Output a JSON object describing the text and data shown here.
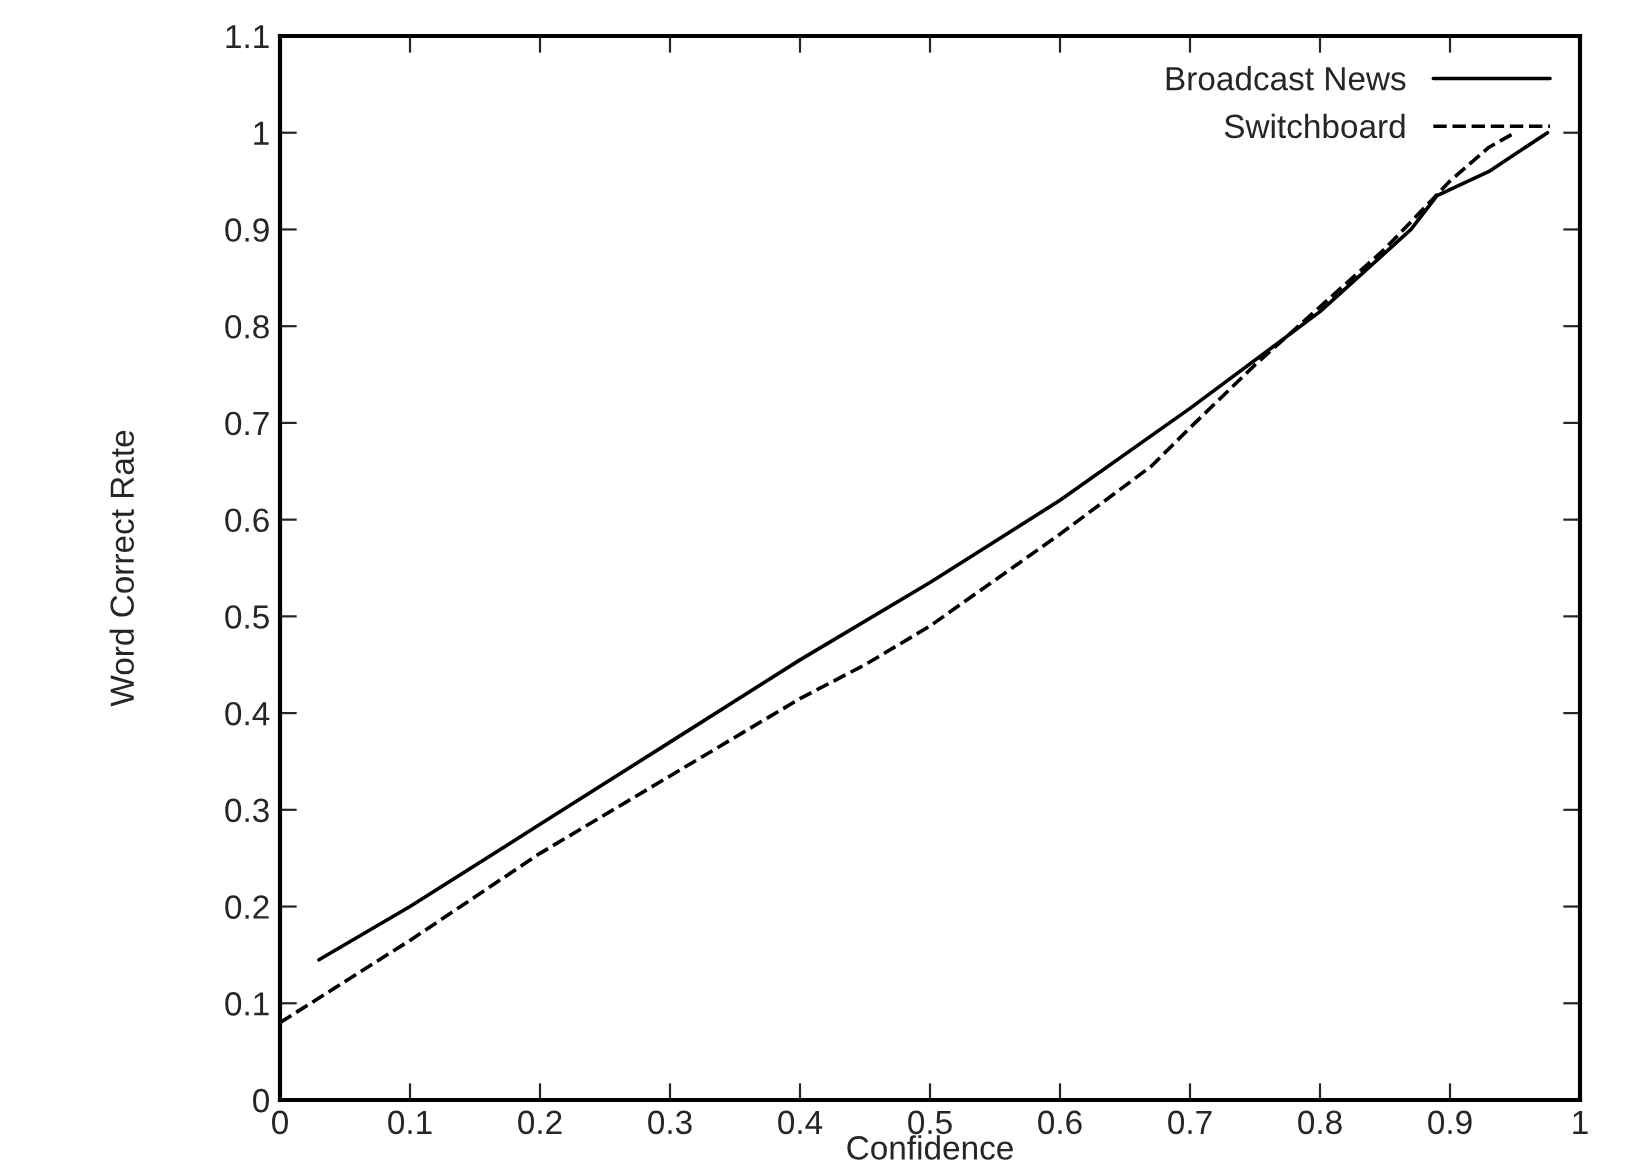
{
  "chart_data": {
    "type": "line",
    "xlabel": "Confidence",
    "ylabel": "Word Correct Rate",
    "xlim": [
      0,
      1
    ],
    "ylim": [
      0,
      1.1
    ],
    "xticks": [
      0,
      0.1,
      0.2,
      0.3,
      0.4,
      0.5,
      0.6,
      0.7,
      0.8,
      0.9,
      1
    ],
    "yticks": [
      0,
      0.1,
      0.2,
      0.3,
      0.4,
      0.5,
      0.6,
      0.7,
      0.8,
      0.9,
      1,
      1.1
    ],
    "grid": false,
    "legend": "top right",
    "series": [
      {
        "name": "Broadcast News",
        "color": "#000000",
        "line_style": "solid",
        "x": [
          0.03,
          0.1,
          0.2,
          0.3,
          0.4,
          0.5,
          0.6,
          0.7,
          0.8,
          0.87,
          0.89,
          0.93,
          0.975
        ],
        "values": [
          0.145,
          0.2,
          0.285,
          0.37,
          0.455,
          0.535,
          0.62,
          0.715,
          0.815,
          0.9,
          0.935,
          0.96,
          1.0
        ]
      },
      {
        "name": "Switchboard",
        "color": "#000000",
        "line_style": "dashed",
        "x": [
          0,
          0.1,
          0.2,
          0.3,
          0.4,
          0.45,
          0.5,
          0.6,
          0.67,
          0.7,
          0.75,
          0.8,
          0.85,
          0.9,
          0.93,
          0.95
        ],
        "values": [
          0.08,
          0.165,
          0.255,
          0.335,
          0.415,
          0.45,
          0.49,
          0.585,
          0.655,
          0.695,
          0.76,
          0.82,
          0.88,
          0.95,
          0.985,
          1.0
        ]
      }
    ]
  }
}
